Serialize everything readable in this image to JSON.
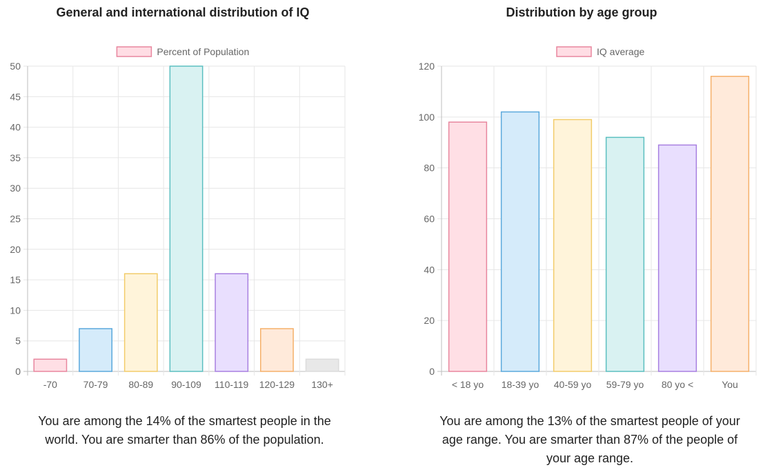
{
  "chart_data": [
    {
      "type": "bar",
      "title": "General and international distribution of IQ",
      "legend": {
        "label": "Percent of Population",
        "position": "top",
        "fill": "#ffdde4",
        "stroke": "#e8869e"
      },
      "categories": [
        "-70",
        "70-79",
        "80-89",
        "90-109",
        "110-119",
        "120-129",
        "130+"
      ],
      "values": [
        2,
        7,
        16,
        50,
        16,
        7,
        2
      ],
      "ylim": [
        0,
        50
      ],
      "yticks": [
        0,
        5,
        10,
        15,
        20,
        25,
        30,
        35,
        40,
        45,
        50
      ],
      "grid": true,
      "colors": [
        {
          "fill": "#ffdfe5",
          "stroke": "#e8869e"
        },
        {
          "fill": "#d5ebfa",
          "stroke": "#5aa8dc"
        },
        {
          "fill": "#fff4da",
          "stroke": "#f2cc6a"
        },
        {
          "fill": "#d9f2f2",
          "stroke": "#5bbfc0"
        },
        {
          "fill": "#e9dffe",
          "stroke": "#a77fe0"
        },
        {
          "fill": "#ffeada",
          "stroke": "#f5b06a"
        },
        {
          "fill": "#e8e8e8",
          "stroke": "#dcdcdc"
        }
      ],
      "caption": "You are among the 14% of the smartest people in the world. You are smarter than 86% of the population."
    },
    {
      "type": "bar",
      "title": "Distribution by age group",
      "legend": {
        "label": "IQ average",
        "position": "top",
        "fill": "#ffdde4",
        "stroke": "#e8869e"
      },
      "categories": [
        "< 18 yo",
        "18-39 yo",
        "40-59 yo",
        "59-79 yo",
        "80 yo <",
        "You"
      ],
      "values": [
        98,
        102,
        99,
        92,
        89,
        116
      ],
      "ylim": [
        0,
        120
      ],
      "yticks": [
        0,
        20,
        40,
        60,
        80,
        100,
        120
      ],
      "grid": true,
      "colors": [
        {
          "fill": "#ffdfe5",
          "stroke": "#e8869e"
        },
        {
          "fill": "#d5ebfa",
          "stroke": "#5aa8dc"
        },
        {
          "fill": "#fff4da",
          "stroke": "#f2cc6a"
        },
        {
          "fill": "#d9f2f2",
          "stroke": "#5bbfc0"
        },
        {
          "fill": "#e9dffe",
          "stroke": "#a77fe0"
        },
        {
          "fill": "#ffeada",
          "stroke": "#f5b06a"
        }
      ],
      "caption": "You are among the 13% of the smartest people of your age range. You are smarter than 87% of the people of your age range."
    }
  ]
}
